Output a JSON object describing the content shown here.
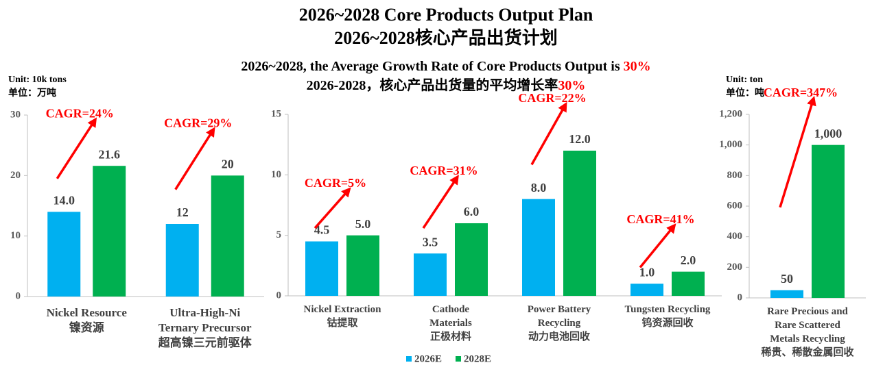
{
  "title": [
    "2026~2028 Core Products Output Plan",
    "2026~2028核心产品出货计划"
  ],
  "subtitle": [
    {
      "text": "2026~2028, the Average Growth Rate of Core Products Output is ",
      "highlight": "30%"
    },
    {
      "text": "2026-2028，核心产品出货量的平均增长率",
      "highlight": "30%"
    }
  ],
  "legend": [
    "2026E",
    "2028E"
  ],
  "chart_data": [
    {
      "type": "bar",
      "y_label": [
        "Unit: 10k tons",
        "单位：万吨"
      ],
      "categories": [
        "Nickel Resource\n镍资源",
        "Ultra-High-Ni\nTernary Precursor\n超高镍三元前驱体"
      ],
      "series": [
        {
          "color": "#00b0f0",
          "values": [
            14,
            12
          ],
          "value_labels": [
            "14.0",
            "12"
          ]
        },
        {
          "color": "#00b050",
          "values": [
            21.6,
            20
          ],
          "value_labels": [
            "21.6",
            "20"
          ]
        }
      ],
      "annotations": [
        "CAGR=24%",
        "CAGR=29%"
      ],
      "ylim": [
        0,
        30
      ],
      "yticks": [
        0,
        10,
        20,
        30
      ]
    },
    {
      "type": "bar",
      "categories": [
        "Nickel Extraction\n钴提取",
        "Cathode\nMaterials\n正极材料",
        "Power Battery\nRecycling\n动力电池回收",
        "Tungsten Recycling\n钨资源回收"
      ],
      "series": [
        {
          "color": "#00b0f0",
          "values": [
            4.5,
            3.5,
            8,
            1
          ],
          "value_labels": [
            "4.5",
            "3.5",
            "8.0",
            "1.0"
          ]
        },
        {
          "color": "#00b050",
          "values": [
            5,
            6,
            12,
            2
          ],
          "value_labels": [
            "5.0",
            "6.0",
            "12.0",
            "2.0"
          ]
        }
      ],
      "annotations": [
        "CAGR=5%",
        "CAGR=31%",
        "CAGR=22%",
        "CAGR=41%"
      ],
      "ylim": [
        0,
        15
      ],
      "yticks": [
        0,
        5,
        10,
        15
      ]
    },
    {
      "type": "bar",
      "y_label": [
        "Unit: ton",
        "单位：吨"
      ],
      "categories": [
        "Rare Precious and\nRare Scattered\nMetals Recycling\n稀贵、稀散金属回收"
      ],
      "series": [
        {
          "color": "#00b0f0",
          "values": [
            50
          ]
        },
        {
          "color": "#00b050",
          "values": [
            1000
          ],
          "value_labels": [
            "1,000"
          ]
        }
      ],
      "annotations": [
        "CAGR=347%"
      ],
      "ylim": [
        0,
        1200
      ],
      "yticks": [
        0,
        200,
        400,
        600,
        800,
        {
          "value": 1000,
          "label": "1,000"
        },
        {
          "value": 1200,
          "label": "1,200"
        }
      ]
    }
  ]
}
